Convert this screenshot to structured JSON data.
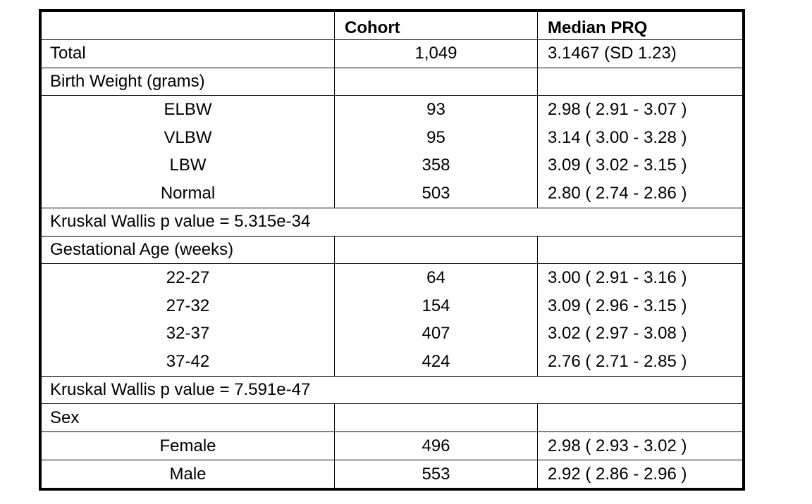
{
  "header": {
    "cohort": "Cohort",
    "median_prq": "Median PRQ"
  },
  "total": {
    "label": "Total",
    "cohort": "1,049",
    "prq": "3.1467 (SD 1.23)"
  },
  "groups": [
    {
      "title": "Birth Weight (grams)",
      "rows": [
        {
          "label": "ELBW",
          "cohort": "93",
          "prq": "2.98 ( 2.91 - 3.07 )"
        },
        {
          "label": "VLBW",
          "cohort": "95",
          "prq": "3.14 ( 3.00 - 3.28 )"
        },
        {
          "label": "LBW",
          "cohort": "358",
          "prq": "3.09 ( 3.02 - 3.15 )"
        },
        {
          "label": "Normal",
          "cohort": "503",
          "prq": "2.80 ( 2.74 - 2.86 )"
        }
      ],
      "footer": "Kruskal Wallis p value = 5.315e-34"
    },
    {
      "title": "Gestational Age (weeks)",
      "rows": [
        {
          "label": "22-27",
          "cohort": "64",
          "prq": "3.00 ( 2.91 - 3.16 )"
        },
        {
          "label": "27-32",
          "cohort": "154",
          "prq": "3.09 ( 2.96 - 3.15 )"
        },
        {
          "label": "32-37",
          "cohort": "407",
          "prq": "3.02 ( 2.97 - 3.08 )"
        },
        {
          "label": "37-42",
          "cohort": "424",
          "prq": "2.76 ( 2.71 - 2.85 )"
        }
      ],
      "footer": "Kruskal Wallis p value = 7.591e-47"
    },
    {
      "title": "Sex",
      "rows": [
        {
          "label": "Female",
          "cohort": "496",
          "prq": "2.98 ( 2.93 - 3.02 )"
        },
        {
          "label": "Male",
          "cohort": "553",
          "prq": "2.92 ( 2.86 - 2.96 )"
        }
      ]
    }
  ]
}
